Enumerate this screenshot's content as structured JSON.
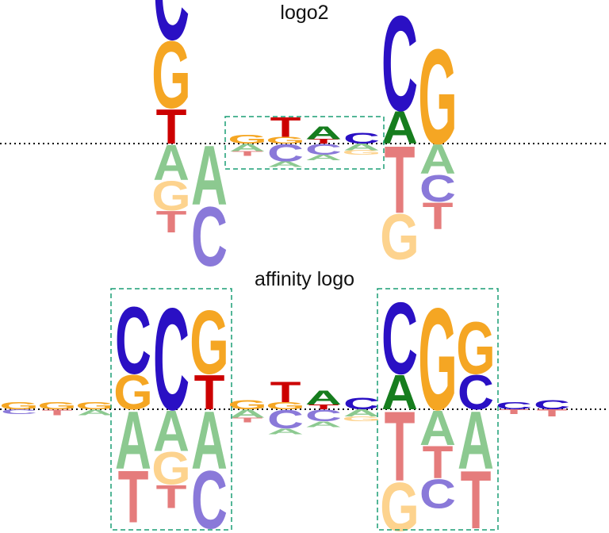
{
  "colors": {
    "C": "#2a10c4",
    "G": "#f5a623",
    "T": "#cc0000",
    "A": "#167d1e",
    "C_neg": "#8a79d9",
    "G_neg": "#fdd38e",
    "T_neg": "#e57c7c",
    "A_neg": "#8cc990",
    "box": "#1a9e75",
    "baseline": "#000000"
  },
  "logos": [
    {
      "title": "logo2",
      "positions": [
        {
          "up": [
            [
              "C",
              0.88
            ],
            [
              "G",
              0.62
            ],
            [
              "T",
              0.32
            ]
          ],
          "down": [
            [
              "A",
              0.33
            ],
            [
              "G",
              0.27
            ],
            [
              "T",
              0.2
            ]
          ]
        },
        {
          "up": [],
          "down": [
            [
              "A",
              0.55
            ],
            [
              "C",
              0.55
            ]
          ]
        },
        {
          "up": [
            [
              "G",
              0.08
            ]
          ],
          "down": [
            [
              "A",
              0.07
            ],
            [
              "T",
              0.04
            ]
          ]
        },
        {
          "up": [
            [
              "T",
              0.18
            ],
            [
              "G",
              0.06
            ]
          ],
          "down": [
            [
              "A",
              0.05
            ],
            [
              "C",
              0.16
            ]
          ]
        },
        {
          "up": [
            [
              "A",
              0.12
            ],
            [
              "T",
              0.04
            ]
          ],
          "down": [
            [
              "C",
              0.1
            ],
            [
              "A",
              0.05
            ]
          ]
        },
        {
          "up": [
            [
              "C",
              0.1
            ]
          ],
          "down": [
            [
              "A",
              0.06
            ],
            [
              "G",
              0.04
            ]
          ]
        },
        {
          "up": [
            [
              "C",
              0.88
            ],
            [
              "A",
              0.3
            ]
          ],
          "down": [
            [
              "G",
              0.42
            ],
            [
              "T",
              0.62
            ]
          ]
        },
        {
          "up": [
            [
              "G",
              0.88
            ]
          ],
          "down": [
            [
              "A",
              0.27
            ],
            [
              "C",
              0.25
            ],
            [
              "T",
              0.25
            ]
          ]
        }
      ],
      "boxes": [
        {
          "from": 2,
          "to": 5
        }
      ]
    },
    {
      "title": "affinity logo",
      "positions": [
        {
          "up": [
            [
              "G",
              0.06
            ]
          ],
          "down": [
            [
              "C",
              0.04
            ]
          ]
        },
        {
          "up": [
            [
              "G",
              0.06
            ]
          ],
          "down": [
            [
              "T",
              0.05
            ]
          ]
        },
        {
          "up": [
            [
              "G",
              0.06
            ]
          ],
          "down": [
            [
              "A",
              0.05
            ]
          ]
        },
        {
          "up": [
            [
              "C",
              0.58
            ],
            [
              "G",
              0.3
            ]
          ],
          "down": [
            [
              "A",
              0.5
            ],
            [
              "T",
              0.45
            ]
          ]
        },
        {
          "up": [
            [
              "C",
              0.88
            ]
          ],
          "down": [
            [
              "A",
              0.35
            ],
            [
              "G",
              0.28
            ],
            [
              "T",
              0.2
            ]
          ]
        },
        {
          "up": [
            [
              "G",
              0.55
            ],
            [
              "T",
              0.3
            ]
          ],
          "down": [
            [
              "A",
              0.5
            ],
            [
              "C",
              0.5
            ]
          ]
        },
        {
          "up": [
            [
              "G",
              0.08
            ]
          ],
          "down": [
            [
              "A",
              0.07
            ],
            [
              "T",
              0.04
            ]
          ]
        },
        {
          "up": [
            [
              "T",
              0.18
            ],
            [
              "G",
              0.06
            ]
          ],
          "down": [
            [
              "A",
              0.05
            ],
            [
              "C",
              0.16
            ]
          ]
        },
        {
          "up": [
            [
              "A",
              0.12
            ],
            [
              "T",
              0.04
            ]
          ],
          "down": [
            [
              "C",
              0.1
            ],
            [
              "A",
              0.05
            ]
          ]
        },
        {
          "up": [
            [
              "C",
              0.1
            ]
          ],
          "down": [
            [
              "A",
              0.06
            ],
            [
              "G",
              0.04
            ]
          ]
        },
        {
          "up": [
            [
              "C",
              0.62
            ],
            [
              "A",
              0.3
            ]
          ],
          "down": [
            [
              "G",
              0.42
            ],
            [
              "T",
              0.6
            ]
          ]
        },
        {
          "up": [
            [
              "G",
              0.88
            ]
          ],
          "down": [
            [
              "A",
              0.3
            ],
            [
              "C",
              0.25
            ],
            [
              "T",
              0.28
            ]
          ]
        },
        {
          "up": [
            [
              "G",
              0.45
            ],
            [
              "C",
              0.3
            ]
          ],
          "down": [
            [
              "A",
              0.5
            ],
            [
              "T",
              0.5
            ]
          ]
        },
        {
          "up": [
            [
              "C",
              0.06
            ]
          ],
          "down": [
            [
              "T",
              0.04
            ]
          ]
        },
        {
          "up": [
            [
              "C",
              0.08
            ]
          ],
          "down": [
            [
              "T",
              0.06
            ]
          ]
        }
      ],
      "boxes": [
        {
          "from": 3,
          "to": 5
        },
        {
          "from": 10,
          "to": 12
        }
      ]
    }
  ]
}
